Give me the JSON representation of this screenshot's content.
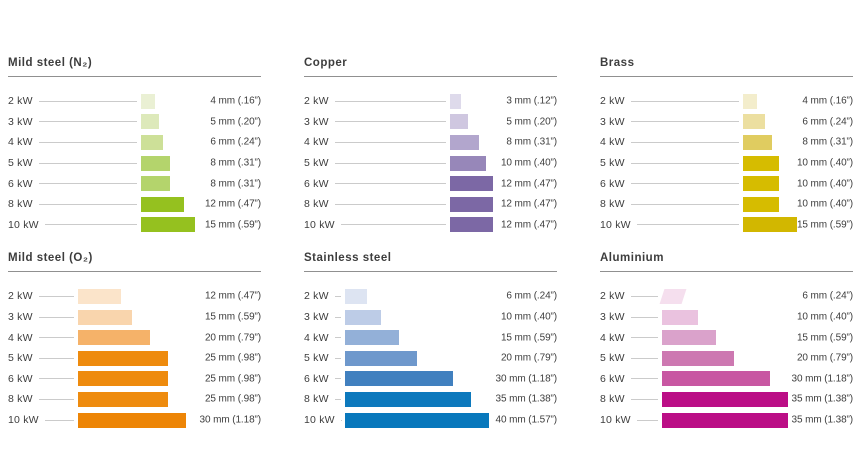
{
  "page": {
    "background": "#ffffff",
    "text_color": "#3d3d3d"
  },
  "chart_data": {
    "type": "bar",
    "orientation": "horizontal",
    "categories": [
      "2 kW",
      "3 kW",
      "4 kW",
      "5 kW",
      "6 kW",
      "8 kW",
      "10 kW"
    ],
    "value_unit": "mm",
    "panels": [
      {
        "title": "Mild steel (N₂)",
        "accent_color": "#95c11f",
        "rows": [
          {
            "kw": "2 kW",
            "mm": 4,
            "label": "4 mm (.16”)",
            "color": "#eaf0d4"
          },
          {
            "kw": "3 kW",
            "mm": 5,
            "label": "5 mm (.20”)",
            "color": "#dde9ba"
          },
          {
            "kw": "4 kW",
            "mm": 6,
            "label": "6 mm (.24”)",
            "color": "#cde098"
          },
          {
            "kw": "5 kW",
            "mm": 8,
            "label": "8 mm (.31”)",
            "color": "#b4d46c"
          },
          {
            "kw": "6 kW",
            "mm": 8,
            "label": "8 mm (.31”)",
            "color": "#b4d46c"
          },
          {
            "kw": "8 kW",
            "mm": 12,
            "label": "12 mm (.47”)",
            "color": "#95c11f"
          },
          {
            "kw": "10 kW",
            "mm": 15,
            "label": "15 mm (.59”)",
            "color": "#95c11f"
          }
        ]
      },
      {
        "title": "Copper",
        "accent_color": "#7c68a5",
        "rows": [
          {
            "kw": "2 kW",
            "mm": 3,
            "label": "3 mm (.12”)",
            "color": "#dedaeb"
          },
          {
            "kw": "3 kW",
            "mm": 5,
            "label": "5 mm (.20”)",
            "color": "#cfc7e0"
          },
          {
            "kw": "4 kW",
            "mm": 8,
            "label": "8 mm (.31”)",
            "color": "#b2a6cd"
          },
          {
            "kw": "5 kW",
            "mm": 10,
            "label": "10 mm (.40”)",
            "color": "#9787b9"
          },
          {
            "kw": "6 kW",
            "mm": 12,
            "label": "12 mm (.47”)",
            "color": "#7c68a5"
          },
          {
            "kw": "8 kW",
            "mm": 12,
            "label": "12 mm (.47”)",
            "color": "#7c68a5"
          },
          {
            "kw": "10 kW",
            "mm": 12,
            "label": "12 mm (.47”)",
            "color": "#7c68a5"
          }
        ]
      },
      {
        "title": "Brass",
        "accent_color": "#d6bc00",
        "rows": [
          {
            "kw": "2 kW",
            "mm": 4,
            "label": "4 mm (.16”)",
            "color": "#f3edcc"
          },
          {
            "kw": "3 kW",
            "mm": 6,
            "label": "6 mm (.24”)",
            "color": "#ecdfa0"
          },
          {
            "kw": "4 kW",
            "mm": 8,
            "label": "8 mm (.31”)",
            "color": "#e0cc60"
          },
          {
            "kw": "5 kW",
            "mm": 10,
            "label": "10 mm (.40”)",
            "color": "#d6bc00"
          },
          {
            "kw": "6 kW",
            "mm": 10,
            "label": "10 mm (.40”)",
            "color": "#d6bc00"
          },
          {
            "kw": "8 kW",
            "mm": 10,
            "label": "10 mm (.40”)",
            "color": "#d6bc00"
          },
          {
            "kw": "10 kW",
            "mm": 15,
            "label": "15 mm (.59”)",
            "color": "#d2b700"
          }
        ]
      },
      {
        "title": "Mild steel (O₂)",
        "accent_color": "#ee8b0e",
        "rows": [
          {
            "kw": "2 kW",
            "mm": 12,
            "label": "12 mm (.47”)",
            "color": "#fbe4ca"
          },
          {
            "kw": "3 kW",
            "mm": 15,
            "label": "15 mm (.59”)",
            "color": "#f9d5ad"
          },
          {
            "kw": "4 kW",
            "mm": 20,
            "label": "20 mm (.79”)",
            "color": "#f5b269"
          },
          {
            "kw": "5 kW",
            "mm": 25,
            "label": "25 mm (.98”)",
            "color": "#ee8b0e"
          },
          {
            "kw": "6 kW",
            "mm": 25,
            "label": "25 mm (.98”)",
            "color": "#ee8b0e"
          },
          {
            "kw": "8 kW",
            "mm": 25,
            "label": "25 mm (.98”)",
            "color": "#ee8b0e"
          },
          {
            "kw": "10 kW",
            "mm": 30,
            "label": "30 mm (1.18”)",
            "color": "#ed8506"
          }
        ]
      },
      {
        "title": "Stainless steel",
        "accent_color": "#0878bc",
        "rows": [
          {
            "kw": "2 kW",
            "mm": 6,
            "label": "6 mm (.24”)",
            "color": "#dde4f2"
          },
          {
            "kw": "3 kW",
            "mm": 10,
            "label": "10 mm (.40”)",
            "color": "#bdcce7"
          },
          {
            "kw": "4 kW",
            "mm": 15,
            "label": "15 mm (.59”)",
            "color": "#93b0d8"
          },
          {
            "kw": "5 kW",
            "mm": 20,
            "label": "20 mm (.79”)",
            "color": "#6e98cc"
          },
          {
            "kw": "6 kW",
            "mm": 30,
            "label": "30 mm (1.18”)",
            "color": "#4180bf"
          },
          {
            "kw": "8 kW",
            "mm": 35,
            "label": "35 mm (1.38”)",
            "color": "#0d79bd"
          },
          {
            "kw": "10 kW",
            "mm": 40,
            "label": "40 mm (1.57”)",
            "color": "#0878bc"
          }
        ]
      },
      {
        "title": "Aluminium",
        "accent_color": "#bb0e86",
        "rows": [
          {
            "kw": "2 kW",
            "mm": 6,
            "label": "6 mm (.24”)",
            "color": "#f5dfee",
            "skewed": true
          },
          {
            "kw": "3 kW",
            "mm": 10,
            "label": "10 mm (.40”)",
            "color": "#eac2df"
          },
          {
            "kw": "4 kW",
            "mm": 15,
            "label": "15 mm (.59”)",
            "color": "#daa2cb"
          },
          {
            "kw": "5 kW",
            "mm": 20,
            "label": "20 mm (.79”)",
            "color": "#cd78b1"
          },
          {
            "kw": "6 kW",
            "mm": 30,
            "label": "30 mm (1.18”)",
            "color": "#c857a2"
          },
          {
            "kw": "8 kW",
            "mm": 35,
            "label": "35 mm (1.38”)",
            "color": "#bb0e86"
          },
          {
            "kw": "10 kW",
            "mm": 35,
            "label": "35 mm (1.38”)",
            "color": "#bb0e86"
          }
        ]
      }
    ]
  }
}
